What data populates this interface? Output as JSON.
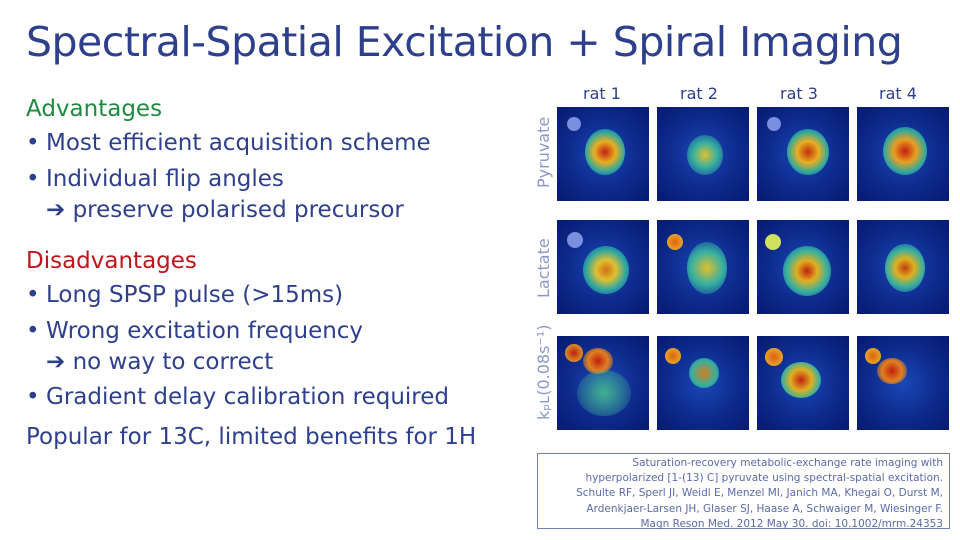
{
  "title": "Spectral-Spatial Excitation + Spiral Imaging",
  "advantages": {
    "heading": "Advantages",
    "items": [
      "Most efficient acquisition scheme",
      "Individual flip angles"
    ],
    "sub": "➔ preserve polarised precursor"
  },
  "disadvantages": {
    "heading": "Disadvantages",
    "items": [
      "Long SPSP pulse (>15ms)",
      "Wrong excitation frequency",
      "Gradient delay calibration required"
    ],
    "sub": "➔ no way to correct"
  },
  "bullet_glyph": "•",
  "conclusion": "Popular for 13C, limited benefits for 1H",
  "figure": {
    "columns": [
      "rat 1",
      "rat 2",
      "rat 3",
      "rat 4"
    ],
    "rows": [
      "Pyruvate",
      "Lactate",
      "kₚʟ(0.08s⁻¹)"
    ]
  },
  "reference": [
    "Saturation-recovery metabolic-exchange rate imaging with",
    "hyperpolarized [1-(13) C] pyruvate using spectral-spatial excitation.",
    "Schulte RF, Sperl JI, Weidl E, Menzel MI, Janich MA, Khegai O, Durst M,",
    "Ardenkjaer-Larsen JH, Glaser SJ, Haase A, Schwaiger M, Wiesinger F.",
    "Magn Reson Med. 2012 May 30. doi: 10.1002/mrm.24353"
  ]
}
